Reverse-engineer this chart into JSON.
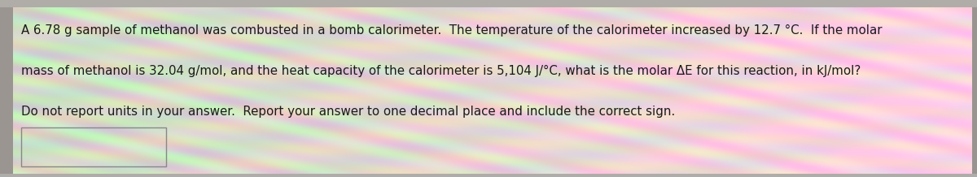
{
  "line1": "A 6.78 g sample of methanol was combusted in a bomb calorimeter.  The temperature of the calorimeter increased by 12.7 °C.  If the molar",
  "line2": "mass of methanol is 32.04 g/mol, and the heat capacity of the calorimeter is 5,104 J/°C, what is the molar ΔE for this reaction, in kJ/mol?",
  "line3": "Do not report units in your answer.  Report your answer to one decimal place and include the correct sign.",
  "text_color": "#1a1a1a",
  "font_size": 10.8,
  "left_strip_color": "#9a9590",
  "border_color": "#888888"
}
